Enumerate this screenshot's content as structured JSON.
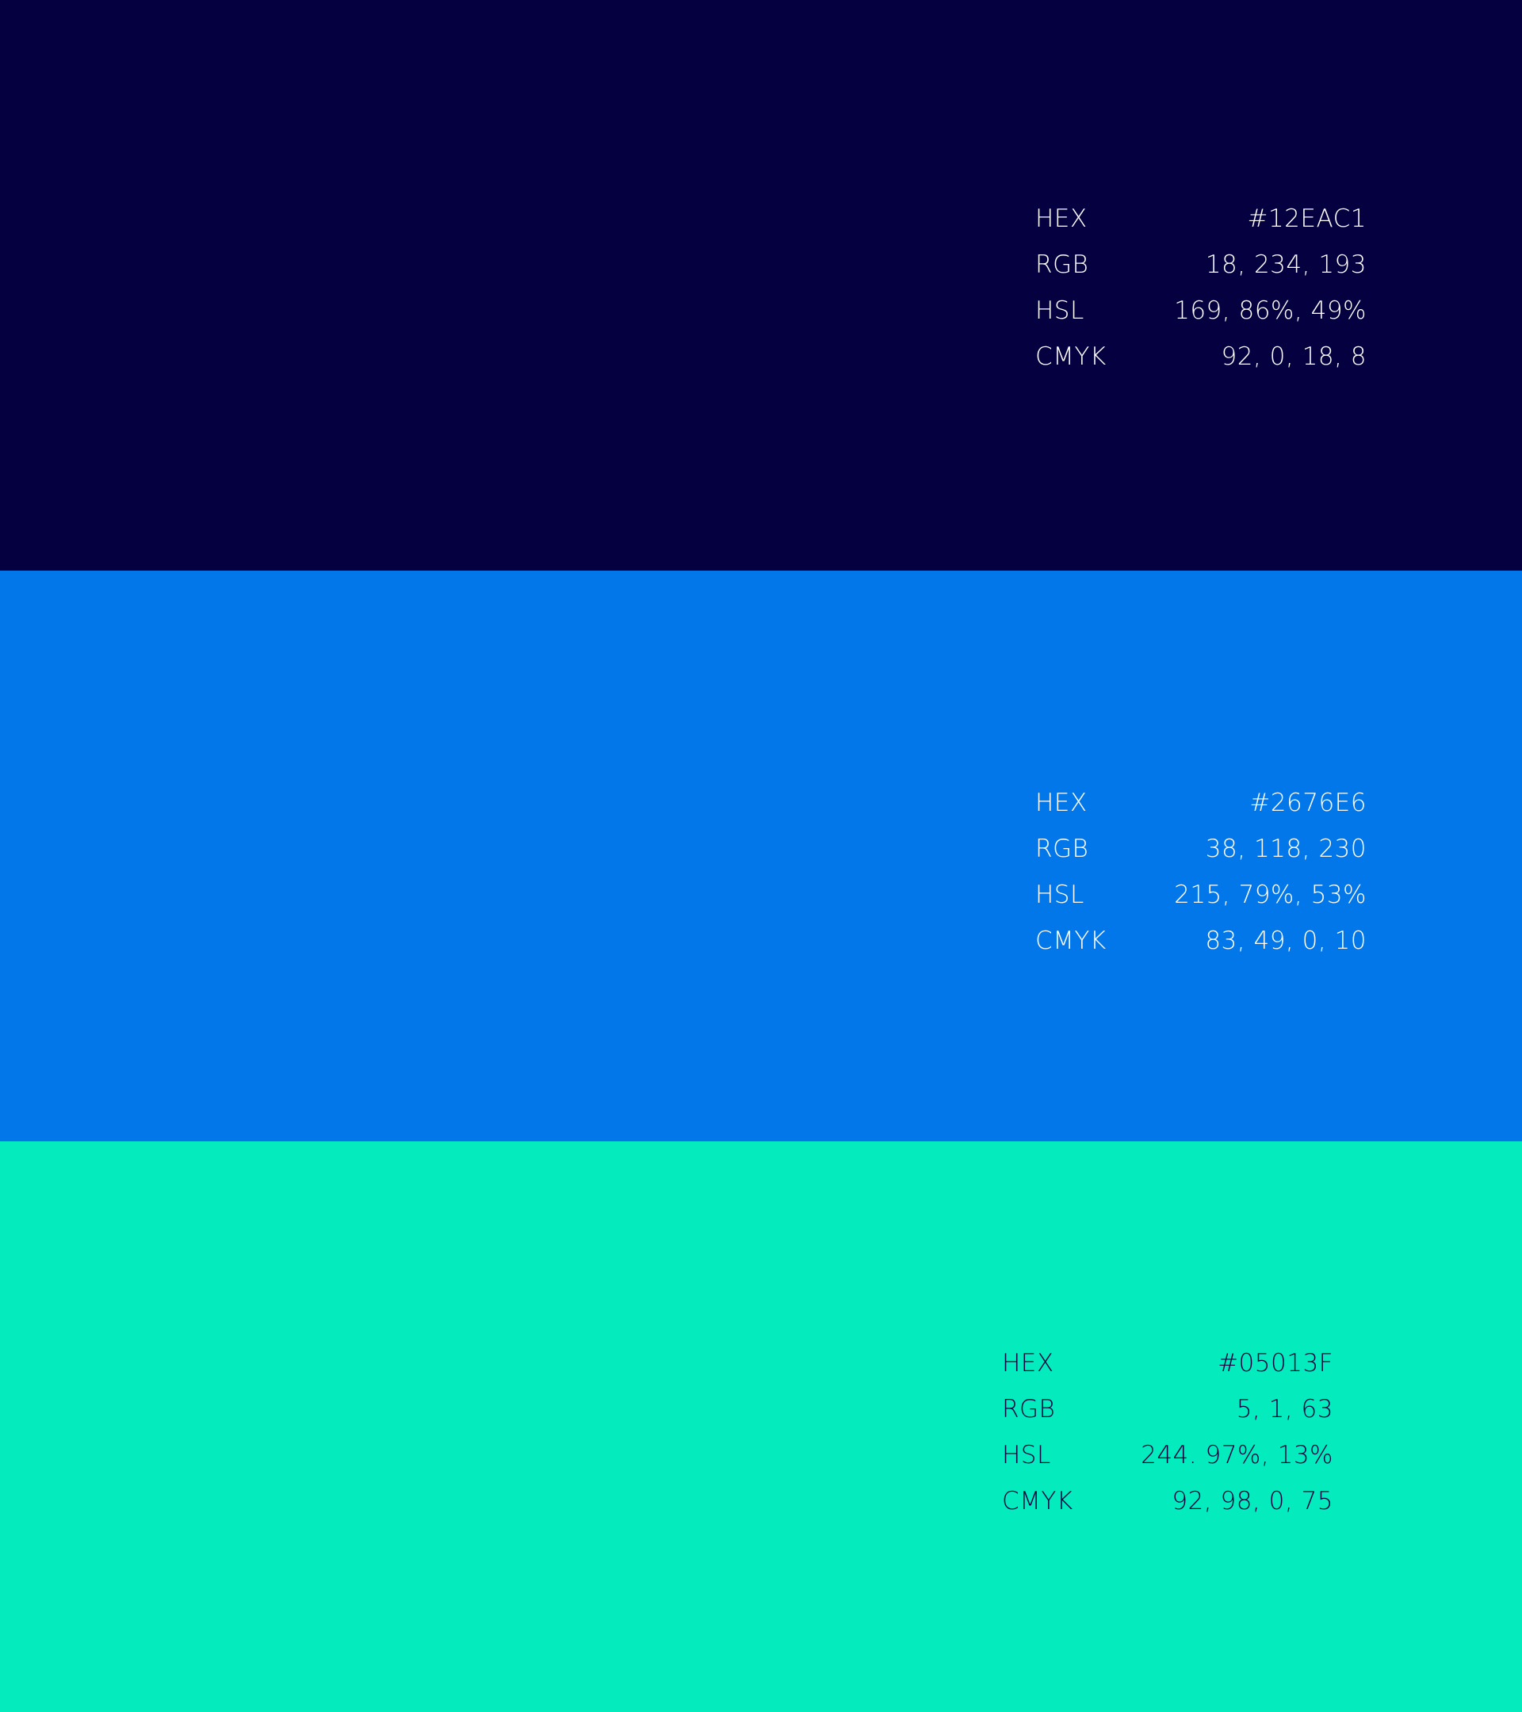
{
  "swatches": [
    {
      "background": "#050040",
      "text_color": "#FFFFFF",
      "rows": [
        {
          "label": "HEX",
          "value": "#12EAC1"
        },
        {
          "label": "RGB",
          "value": "18, 234, 193"
        },
        {
          "label": "HSL",
          "value": "169, 86%, 49%"
        },
        {
          "label": "CMYK",
          "value": "92, 0, 18, 8"
        }
      ]
    },
    {
      "background": "#0277EA",
      "text_color": "#FFFFFF",
      "rows": [
        {
          "label": "HEX",
          "value": "#2676E6"
        },
        {
          "label": "RGB",
          "value": "38, 118, 230"
        },
        {
          "label": "HSL",
          "value": "215, 79%, 53%"
        },
        {
          "label": "CMYK",
          "value": "83, 49, 0, 10"
        }
      ]
    },
    {
      "background": "#04EBBE",
      "text_color": "#05013F",
      "rows": [
        {
          "label": "HEX",
          "value": "#05013F"
        },
        {
          "label": "RGB",
          "value": "5, 1, 63"
        },
        {
          "label": "HSL",
          "value": "244. 97%, 13%"
        },
        {
          "label": "CMYK",
          "value": "92, 98, 0, 75"
        }
      ]
    }
  ]
}
